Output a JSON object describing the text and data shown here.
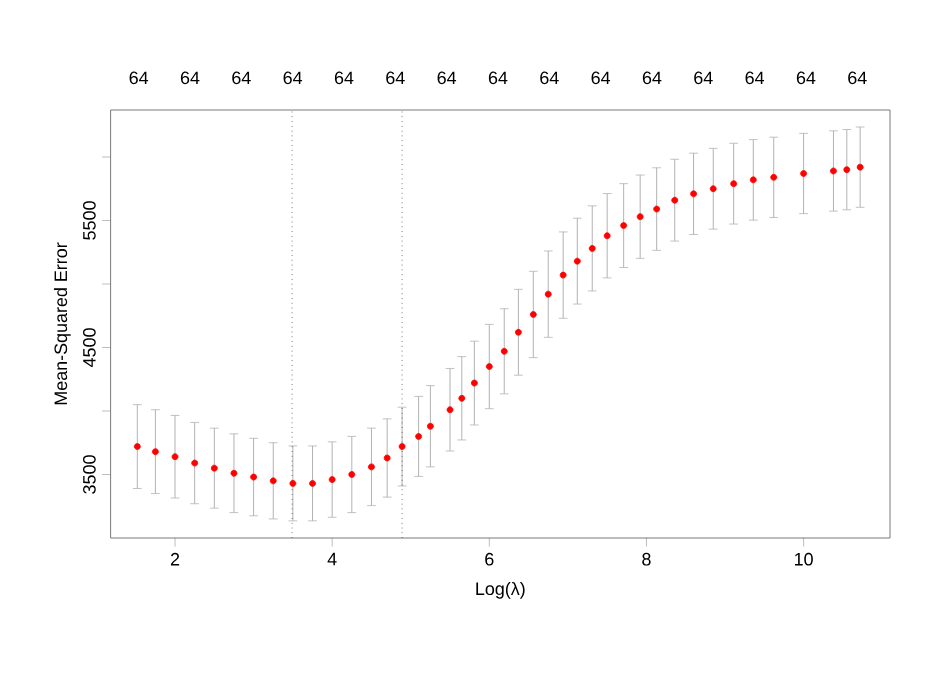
{
  "chart_data": {
    "type": "scatter",
    "xlabel": "Log(λ)",
    "ylabel": "Mean-Squared Error",
    "xlim": [
      1.18,
      11.1
    ],
    "xticks": [
      2,
      4,
      6,
      8,
      10
    ],
    "ylim": [
      3000,
      6370
    ],
    "yticks": [
      3500,
      {
        "value": 4000,
        "label": null
      },
      4500,
      {
        "value": 5000,
        "label": null
      },
      5500,
      {
        "value": 6000,
        "label": null
      }
    ],
    "annotations": [
      "64",
      "64",
      "64",
      "64",
      "64",
      "64",
      "64",
      "64",
      "64",
      "64",
      "64",
      "64",
      "64",
      "64",
      "64"
    ],
    "marker": "circle",
    "grid": false,
    "ref_lines": [
      {
        "axis": "x",
        "value": 3.49,
        "line_style": "dotted",
        "color": "#333333"
      },
      {
        "axis": "x",
        "value": 4.89,
        "line_style": "dotted",
        "color": "#333333"
      }
    ],
    "series": [
      {
        "color": "#ff0000",
        "x": [
          1.52,
          1.75,
          2,
          2.25,
          2.5,
          2.75,
          3,
          3.25,
          3.5,
          3.75,
          4,
          4.25,
          4.5,
          4.7,
          4.89,
          5.1,
          5.25,
          5.5,
          5.65,
          5.81,
          6.0,
          6.19,
          6.37,
          6.56,
          6.75,
          6.94,
          7.12,
          7.31,
          7.5,
          7.71,
          7.92,
          8.13,
          8.36,
          8.6,
          8.85,
          9.11,
          9.36,
          9.62,
          10.0,
          10.38,
          10.55,
          10.72
        ],
        "values": [
          3720,
          3680,
          3640,
          3590,
          3550,
          3510,
          3480,
          3450,
          3430,
          3430,
          3460,
          3500,
          3560,
          3630,
          3720,
          3800,
          3880,
          4010,
          4100,
          4220,
          4350,
          4470,
          4620,
          4760,
          4920,
          5070,
          5180,
          5280,
          5380,
          5460,
          5530,
          5590,
          5660,
          5710,
          5750,
          5790,
          5820,
          5840,
          5870,
          5890,
          5900,
          5920
        ],
        "errors": [
          330,
          330,
          325,
          320,
          315,
          310,
          305,
          300,
          295,
          295,
          297,
          300,
          305,
          308,
          310,
          315,
          320,
          325,
          328,
          330,
          332,
          335,
          338,
          340,
          340,
          340,
          338,
          335,
          332,
          330,
          328,
          325,
          322,
          320,
          318,
          318,
          317,
          316,
          316,
          316,
          316,
          316
        ]
      }
    ]
  }
}
